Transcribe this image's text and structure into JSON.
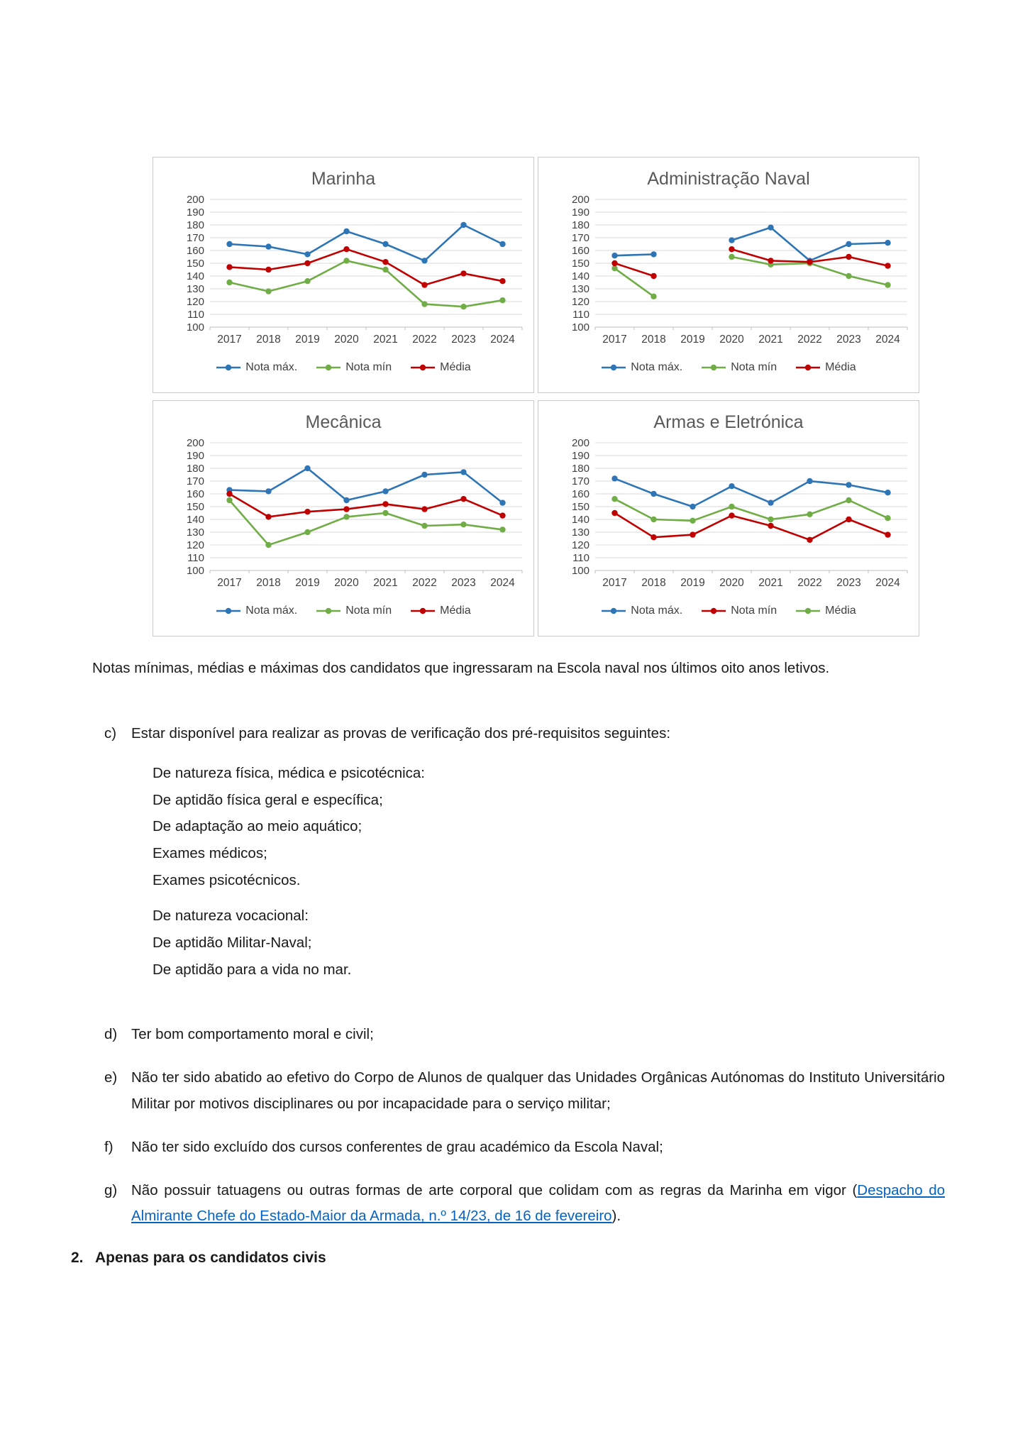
{
  "text": {
    "caption": "Notas mínimas, médias e máximas dos candidatos que ingressaram na Escola naval nos últimos oito anos letivos.",
    "c": {
      "label": "c)",
      "text": "Estar disponível para realizar as provas de verificação dos pré-requisitos seguintes:"
    },
    "c_sub": [
      "De natureza física, médica e psicotécnica:",
      "De aptidão física geral e específica;",
      "De adaptação ao meio aquático;",
      "Exames médicos;",
      "Exames psicotécnicos.",
      "De natureza vocacional:",
      "De aptidão Militar-Naval;",
      "De aptidão para a vida no mar."
    ],
    "d": {
      "label": "d)",
      "text": "Ter bom comportamento moral e civil;"
    },
    "e": {
      "label": "e)",
      "text": "Não ter sido abatido ao efetivo do Corpo de Alunos de qualquer das Unidades Orgânicas Autónomas do Instituto Universitário Militar por motivos disciplinares ou por incapacidade para o serviço militar;"
    },
    "f": {
      "label": "f)",
      "text": "Não ter sido excluído dos cursos conferentes de grau académico da Escola Naval;"
    },
    "g": {
      "label": "g)",
      "text_before": "Não possuir tatuagens ou outras formas de arte corporal que colidam com as regras da Marinha em vigor (",
      "link_text": "Despacho do Almirante Chefe do Estado-Maior da Armada, n.º 14/23, de 16 de fevereiro",
      "text_after": ")."
    },
    "heading2": {
      "number": "2.",
      "text": "Apenas para os candidatos civis"
    }
  },
  "colors": {
    "blue": "#2E75B6",
    "green": "#70AD47",
    "red": "#C00000",
    "link": "#0563C1"
  },
  "chart_data": [
    {
      "type": "line",
      "title": "Marinha",
      "categories": [
        "2017",
        "2018",
        "2019",
        "2020",
        "2021",
        "2022",
        "2023",
        "2024"
      ],
      "ylim": [
        100,
        200
      ],
      "ytick": 10,
      "grid": true,
      "legend_position": "bottom",
      "series": [
        {
          "name": "Nota máx.",
          "color": "#2E75B6",
          "values": [
            165,
            163,
            157,
            175,
            165,
            152,
            180,
            165
          ]
        },
        {
          "name": "Nota mín",
          "color": "#70AD47",
          "values": [
            135,
            128,
            136,
            152,
            145,
            118,
            116,
            121
          ]
        },
        {
          "name": "Média",
          "color": "#C00000",
          "values": [
            147,
            145,
            150,
            161,
            151,
            133,
            142,
            136
          ]
        }
      ]
    },
    {
      "type": "line",
      "title": "Administração Naval",
      "categories": [
        "2017",
        "2018",
        "2019",
        "2020",
        "2021",
        "2022",
        "2023",
        "2024"
      ],
      "ylim": [
        100,
        200
      ],
      "ytick": 10,
      "grid": true,
      "legend_position": "bottom",
      "series": [
        {
          "name": "Nota máx.",
          "color": "#2E75B6",
          "values": [
            156,
            157,
            null,
            168,
            178,
            152,
            165,
            166
          ]
        },
        {
          "name": "Nota mín",
          "color": "#70AD47",
          "values": [
            146,
            124,
            null,
            155,
            149,
            150,
            140,
            133
          ]
        },
        {
          "name": "Média",
          "color": "#C00000",
          "values": [
            150,
            140,
            null,
            161,
            152,
            151,
            155,
            148
          ]
        }
      ]
    },
    {
      "type": "line",
      "title": "Mecânica",
      "categories": [
        "2017",
        "2018",
        "2019",
        "2020",
        "2021",
        "2022",
        "2023",
        "2024"
      ],
      "ylim": [
        100,
        200
      ],
      "ytick": 10,
      "grid": true,
      "legend_position": "bottom",
      "series": [
        {
          "name": "Nota máx.",
          "color": "#2E75B6",
          "values": [
            163,
            162,
            180,
            155,
            162,
            175,
            177,
            153
          ]
        },
        {
          "name": "Nota mín",
          "color": "#70AD47",
          "values": [
            155,
            120,
            130,
            142,
            145,
            135,
            136,
            132
          ]
        },
        {
          "name": "Média",
          "color": "#C00000",
          "values": [
            160,
            142,
            146,
            148,
            152,
            148,
            156,
            143
          ]
        }
      ]
    },
    {
      "type": "line",
      "title": "Armas e Eletrónica",
      "categories": [
        "2017",
        "2018",
        "2019",
        "2020",
        "2021",
        "2022",
        "2023",
        "2024"
      ],
      "ylim": [
        100,
        200
      ],
      "ytick": 10,
      "grid": true,
      "legend_position": "bottom",
      "series": [
        {
          "name": "Nota máx.",
          "color": "#2E75B6",
          "values": [
            172,
            160,
            150,
            166,
            153,
            170,
            167,
            161
          ]
        },
        {
          "name": "Nota mín",
          "color": "#C00000",
          "values": [
            145,
            126,
            128,
            143,
            135,
            124,
            140,
            128
          ]
        },
        {
          "name": "Média",
          "color": "#70AD47",
          "values": [
            156,
            140,
            139,
            150,
            140,
            144,
            155,
            141
          ]
        }
      ]
    }
  ]
}
